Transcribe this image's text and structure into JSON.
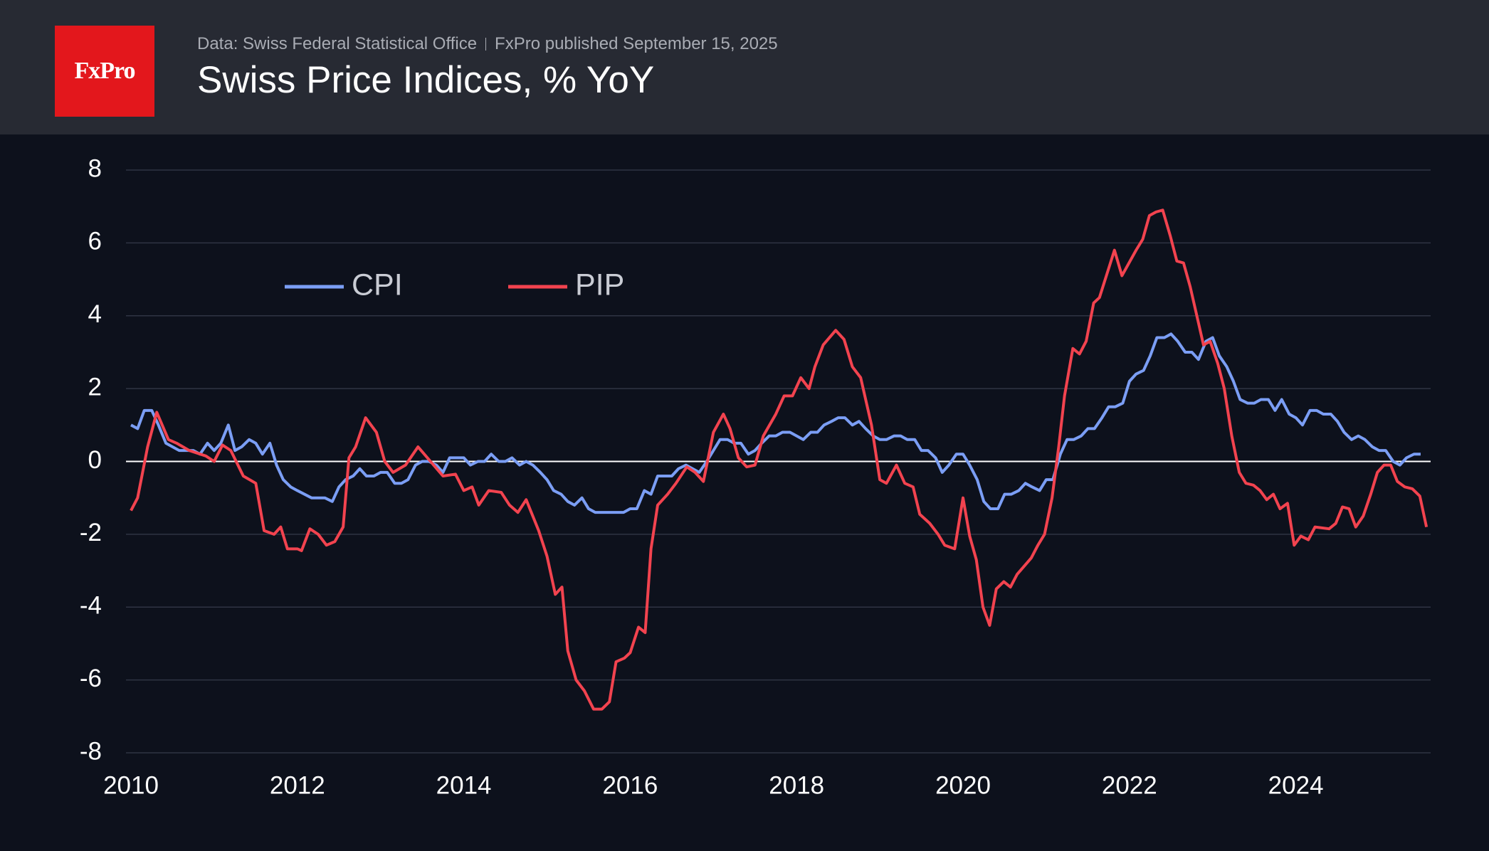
{
  "logo": "FxPro",
  "chart_data": {
    "type": "line",
    "source": "Data: Swiss Federal Statistical Office",
    "published": "FxPro published September 15, 2025",
    "title": "Swiss Price Indices, % YoY",
    "xlim": [
      2010,
      2025.62
    ],
    "xticks": [
      2010,
      2012,
      2014,
      2016,
      2018,
      2020,
      2022,
      2024
    ],
    "ylim": [
      -8,
      8
    ],
    "yticks": [
      -8,
      -6,
      -4,
      -2,
      0,
      2,
      4,
      6,
      8
    ],
    "grid": true,
    "legend": "upper left",
    "series": [
      {
        "name": "CPI",
        "color": "#7b9ef5",
        "x": [
          2010.0,
          2010.08,
          2010.16,
          2010.25,
          2010.33,
          2010.42,
          2010.5,
          2010.58,
          2010.75,
          2010.83,
          2010.92,
          2011.0,
          2011.08,
          2011.17,
          2011.25,
          2011.33,
          2011.42,
          2011.5,
          2011.58,
          2011.67,
          2011.75,
          2011.83,
          2011.92,
          2012.0,
          2012.17,
          2012.33,
          2012.42,
          2012.5,
          2012.58,
          2012.67,
          2012.75,
          2012.83,
          2012.92,
          2013.0,
          2013.08,
          2013.17,
          2013.25,
          2013.33,
          2013.42,
          2013.5,
          2013.58,
          2013.67,
          2013.75,
          2013.83,
          2014.0,
          2014.08,
          2014.17,
          2014.25,
          2014.33,
          2014.42,
          2014.5,
          2014.58,
          2014.67,
          2014.75,
          2014.83,
          2014.92,
          2015.0,
          2015.08,
          2015.17,
          2015.25,
          2015.33,
          2015.42,
          2015.5,
          2015.58,
          2015.75,
          2015.92,
          2016.0,
          2016.08,
          2016.17,
          2016.25,
          2016.33,
          2016.5,
          2016.58,
          2016.67,
          2016.75,
          2016.83,
          2016.92,
          2017.0,
          2017.08,
          2017.17,
          2017.25,
          2017.33,
          2017.42,
          2017.5,
          2017.58,
          2017.67,
          2017.75,
          2017.83,
          2017.92,
          2018.0,
          2018.08,
          2018.17,
          2018.25,
          2018.33,
          2018.42,
          2018.5,
          2018.58,
          2018.67,
          2018.75,
          2018.83,
          2018.92,
          2019.0,
          2019.08,
          2019.17,
          2019.25,
          2019.33,
          2019.42,
          2019.5,
          2019.58,
          2019.67,
          2019.75,
          2019.83,
          2019.92,
          2020.0,
          2020.08,
          2020.17,
          2020.25,
          2020.33,
          2020.42,
          2020.5,
          2020.58,
          2020.67,
          2020.75,
          2020.83,
          2020.92,
          2021.0,
          2021.08,
          2021.17,
          2021.25,
          2021.33,
          2021.42,
          2021.5,
          2021.58,
          2021.67,
          2021.75,
          2021.83,
          2021.92,
          2022.0,
          2022.08,
          2022.17,
          2022.25,
          2022.33,
          2022.42,
          2022.5,
          2022.58,
          2022.67,
          2022.75,
          2022.83,
          2022.92,
          2023.0,
          2023.08,
          2023.17,
          2023.25,
          2023.33,
          2023.42,
          2023.5,
          2023.58,
          2023.67,
          2023.75,
          2023.83,
          2023.92,
          2024.0,
          2024.08,
          2024.17,
          2024.25,
          2024.33,
          2024.42,
          2024.5,
          2024.58,
          2024.67,
          2024.75,
          2024.83,
          2024.92,
          2025.0,
          2025.08,
          2025.17,
          2025.25,
          2025.33,
          2025.42,
          2025.5
        ],
        "values": [
          1.0,
          0.9,
          1.4,
          1.4,
          1.0,
          0.5,
          0.4,
          0.3,
          0.3,
          0.2,
          0.5,
          0.3,
          0.5,
          1.0,
          0.3,
          0.4,
          0.6,
          0.5,
          0.2,
          0.5,
          -0.1,
          -0.5,
          -0.7,
          -0.8,
          -1.0,
          -1.0,
          -1.1,
          -0.7,
          -0.5,
          -0.4,
          -0.2,
          -0.4,
          -0.4,
          -0.3,
          -0.3,
          -0.6,
          -0.6,
          -0.5,
          -0.1,
          0.0,
          0.0,
          -0.1,
          -0.3,
          0.1,
          0.1,
          -0.1,
          0.0,
          0.0,
          0.2,
          0.0,
          0.0,
          0.1,
          -0.1,
          0.0,
          -0.1,
          -0.3,
          -0.5,
          -0.8,
          -0.9,
          -1.1,
          -1.2,
          -1.0,
          -1.3,
          -1.4,
          -1.4,
          -1.4,
          -1.3,
          -1.3,
          -0.8,
          -0.9,
          -0.4,
          -0.4,
          -0.2,
          -0.1,
          -0.2,
          -0.3,
          0.0,
          0.3,
          0.6,
          0.6,
          0.5,
          0.5,
          0.2,
          0.3,
          0.5,
          0.7,
          0.7,
          0.8,
          0.8,
          0.7,
          0.6,
          0.8,
          0.8,
          1.0,
          1.1,
          1.2,
          1.2,
          1.0,
          1.1,
          0.9,
          0.7,
          0.6,
          0.6,
          0.7,
          0.7,
          0.6,
          0.6,
          0.3,
          0.3,
          0.1,
          -0.3,
          -0.1,
          0.2,
          0.2,
          -0.1,
          -0.5,
          -1.1,
          -1.3,
          -1.3,
          -0.9,
          -0.9,
          -0.8,
          -0.6,
          -0.7,
          -0.8,
          -0.5,
          -0.5,
          0.2,
          0.6,
          0.6,
          0.7,
          0.9,
          0.9,
          1.2,
          1.5,
          1.5,
          1.6,
          2.2,
          2.4,
          2.5,
          2.9,
          3.4,
          3.4,
          3.5,
          3.3,
          3.0,
          3.0,
          2.8,
          3.3,
          3.4,
          2.9,
          2.6,
          2.2,
          1.7,
          1.6,
          1.6,
          1.7,
          1.7,
          1.4,
          1.7,
          1.3,
          1.2,
          1.0,
          1.4,
          1.4,
          1.3,
          1.3,
          1.1,
          0.8,
          0.6,
          0.7,
          0.6,
          0.4,
          0.3,
          0.3,
          0.0,
          -0.1,
          0.1,
          0.2,
          0.2
        ]
      },
      {
        "name": "PIP",
        "color": "#f2434f",
        "x": [
          2010.0,
          2010.08,
          2010.2,
          2010.31,
          2010.45,
          2010.55,
          2010.7,
          2010.9,
          2011.0,
          2011.1,
          2011.2,
          2011.35,
          2011.5,
          2011.6,
          2011.72,
          2011.8,
          2011.88,
          2012.0,
          2012.05,
          2012.15,
          2012.25,
          2012.35,
          2012.45,
          2012.55,
          2012.62,
          2012.7,
          2012.82,
          2012.95,
          2013.05,
          2013.15,
          2013.3,
          2013.45,
          2013.6,
          2013.75,
          2013.9,
          2014.0,
          2014.1,
          2014.18,
          2014.3,
          2014.45,
          2014.55,
          2014.65,
          2014.75,
          2014.9,
          2015.0,
          2015.1,
          2015.18,
          2015.25,
          2015.35,
          2015.45,
          2015.56,
          2015.66,
          2015.75,
          2015.83,
          2015.93,
          2016.0,
          2016.1,
          2016.18,
          2016.25,
          2016.33,
          2016.45,
          2016.55,
          2016.68,
          2016.78,
          2016.88,
          2017.0,
          2017.12,
          2017.2,
          2017.3,
          2017.4,
          2017.5,
          2017.6,
          2017.75,
          2017.85,
          2017.95,
          2018.05,
          2018.15,
          2018.22,
          2018.32,
          2018.47,
          2018.57,
          2018.67,
          2018.77,
          2018.9,
          2019.0,
          2019.08,
          2019.2,
          2019.3,
          2019.4,
          2019.48,
          2019.6,
          2019.7,
          2019.78,
          2019.9,
          2020.0,
          2020.08,
          2020.16,
          2020.24,
          2020.32,
          2020.4,
          2020.49,
          2020.57,
          2020.65,
          2020.82,
          2020.9,
          2020.98,
          2021.07,
          2021.15,
          2021.22,
          2021.32,
          2021.4,
          2021.48,
          2021.57,
          2021.64,
          2021.82,
          2021.91,
          2022.08,
          2022.16,
          2022.24,
          2022.32,
          2022.4,
          2022.49,
          2022.57,
          2022.65,
          2022.73,
          2022.83,
          2022.89,
          2022.97,
          2023.06,
          2023.14,
          2023.23,
          2023.32,
          2023.4,
          2023.49,
          2023.57,
          2023.65,
          2023.73,
          2023.81,
          2023.9,
          2023.98,
          2024.06,
          2024.15,
          2024.23,
          2024.4,
          2024.48,
          2024.56,
          2024.64,
          2024.72,
          2024.81,
          2024.9,
          2024.98,
          2025.06,
          2025.14,
          2025.22,
          2025.31,
          2025.4,
          2025.49,
          2025.57
        ],
        "values": [
          -1.35,
          -1.0,
          0.4,
          1.35,
          0.6,
          0.5,
          0.3,
          0.15,
          0.0,
          0.45,
          0.3,
          -0.4,
          -0.6,
          -1.9,
          -2.0,
          -1.8,
          -2.4,
          -2.4,
          -2.45,
          -1.85,
          -2.0,
          -2.3,
          -2.2,
          -1.8,
          0.1,
          0.4,
          1.2,
          0.8,
          0.0,
          -0.3,
          -0.1,
          0.4,
          0.0,
          -0.4,
          -0.35,
          -0.8,
          -0.7,
          -1.2,
          -0.8,
          -0.85,
          -1.2,
          -1.4,
          -1.05,
          -1.9,
          -2.6,
          -3.65,
          -3.45,
          -5.2,
          -6.0,
          -6.3,
          -6.8,
          -6.8,
          -6.6,
          -5.5,
          -5.4,
          -5.25,
          -4.55,
          -4.7,
          -2.4,
          -1.2,
          -0.9,
          -0.6,
          -0.15,
          -0.3,
          -0.55,
          0.8,
          1.3,
          0.9,
          0.1,
          -0.15,
          -0.1,
          0.7,
          1.3,
          1.8,
          1.8,
          2.3,
          2.0,
          2.6,
          3.2,
          3.6,
          3.35,
          2.6,
          2.3,
          1.0,
          -0.5,
          -0.6,
          -0.1,
          -0.6,
          -0.7,
          -1.45,
          -1.7,
          -2.0,
          -2.3,
          -2.4,
          -1.0,
          -2.05,
          -2.7,
          -4.0,
          -4.5,
          -3.5,
          -3.3,
          -3.45,
          -3.1,
          -2.65,
          -2.3,
          -2.0,
          -1.0,
          0.4,
          1.8,
          3.1,
          2.95,
          3.3,
          4.35,
          4.5,
          5.8,
          5.1,
          5.8,
          6.1,
          6.75,
          6.85,
          6.9,
          6.2,
          5.5,
          5.45,
          4.8,
          3.8,
          3.2,
          3.3,
          2.7,
          2.0,
          0.7,
          -0.3,
          -0.6,
          -0.65,
          -0.8,
          -1.05,
          -0.9,
          -1.3,
          -1.15,
          -2.3,
          -2.05,
          -2.15,
          -1.8,
          -1.85,
          -1.7,
          -1.25,
          -1.3,
          -1.8,
          -1.5,
          -0.9,
          -0.3,
          -0.1,
          -0.1,
          -0.55,
          -0.7,
          -0.75,
          -0.95,
          -1.8
        ]
      }
    ]
  }
}
